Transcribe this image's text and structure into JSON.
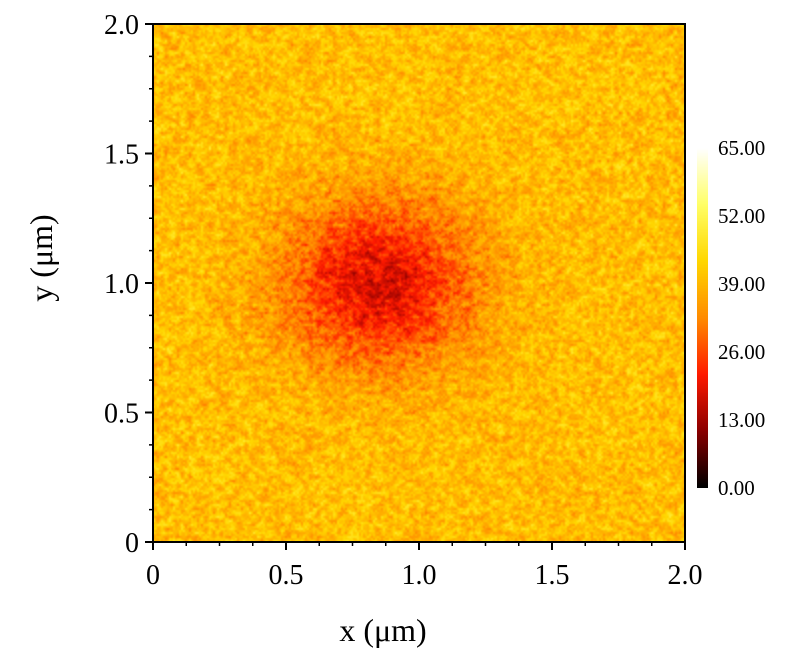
{
  "chart_data": {
    "type": "heatmap",
    "xlabel": "x (μm)",
    "ylabel": "y (μm)",
    "xlim": [
      0,
      2.0
    ],
    "ylim": [
      0,
      2.0
    ],
    "x_ticks": [
      "0",
      "0.5",
      "1.0",
      "1.5",
      "2.0"
    ],
    "y_ticks": [
      "0",
      "0.5",
      "1.0",
      "1.5",
      "2.0"
    ],
    "colorbar": {
      "min": 0,
      "max": 65,
      "ticks": [
        "0.00",
        "13.00",
        "26.00",
        "39.00",
        "52.00",
        "65.00"
      ],
      "colormap": "hot",
      "colors": [
        "#000000",
        "#8b0000",
        "#ff1a00",
        "#ff8c00",
        "#ffd700",
        "#ffff66",
        "#ffffff"
      ]
    },
    "field": {
      "background_value": 40,
      "noise_amplitude": 9,
      "depression": {
        "center_x": 0.85,
        "center_y": 1.0,
        "radius": 0.45,
        "min_value": 18
      }
    },
    "grid": false,
    "colorbar_position": "right"
  }
}
